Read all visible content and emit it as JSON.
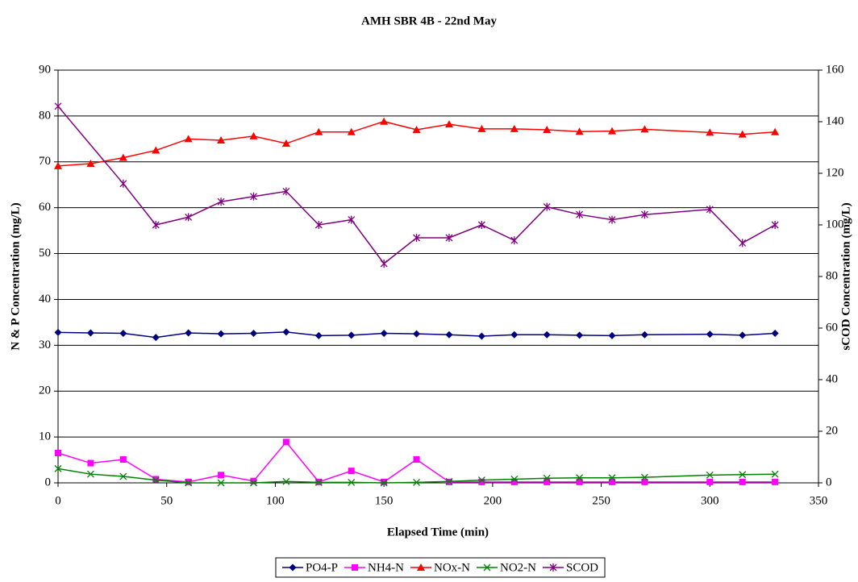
{
  "chart_data": {
    "type": "line",
    "title": "AMH SBR 4B - 22nd May",
    "x_label": "Elapsed Time (min)",
    "y_label": "N & P Concentration (mg/L)",
    "y2_label": "sCOD Concentration (mg/L)",
    "x": [
      0,
      15,
      30,
      45,
      60,
      75,
      90,
      105,
      120,
      135,
      150,
      165,
      180,
      195,
      210,
      225,
      240,
      255,
      270,
      300,
      315,
      330
    ],
    "series": [
      {
        "name": "PO4-P",
        "color": "#000080",
        "marker": "diamond",
        "values": [
          32.8,
          32.7,
          32.6,
          31.7,
          32.7,
          32.5,
          32.6,
          32.9,
          32.1,
          32.2,
          32.6,
          32.5,
          32.3,
          32.0,
          32.3,
          32.3,
          32.2,
          32.1,
          32.3,
          32.4,
          32.2,
          32.6
        ]
      },
      {
        "name": "NH4-N",
        "color": "#ff00ff",
        "marker": "square",
        "values": [
          6.5,
          4.3,
          5.1,
          0.8,
          0.2,
          1.7,
          0.4,
          8.9,
          0.2,
          2.6,
          0.2,
          5.1,
          0.2,
          0.2,
          0.2,
          0.2,
          0.2,
          0.2,
          0.2,
          0.2,
          0.2,
          0.2
        ]
      },
      {
        "name": "NOx-N",
        "color": "#ff0000",
        "marker": "triangle",
        "values": [
          69.1,
          69.6,
          70.9,
          72.5,
          75.0,
          74.7,
          75.6,
          74.0,
          76.5,
          76.5,
          78.8,
          77.0,
          78.2,
          77.2,
          77.2,
          77.0,
          76.6,
          76.7,
          77.1,
          76.4,
          76.0,
          76.5
        ]
      },
      {
        "name": "NO2-N",
        "color": "#008000",
        "marker": "x",
        "values": [
          3.1,
          1.9,
          1.4,
          0.6,
          0,
          0,
          0,
          0.3,
          0.1,
          0.1,
          0,
          0.1,
          0.3,
          0.6,
          0.8,
          1.0,
          1.1,
          1.1,
          1.2,
          1.7,
          1.8,
          1.9
        ]
      },
      {
        "name": "SCOD",
        "color": "#800080",
        "marker": "asterisk",
        "axis": "y2",
        "x": [
          0,
          30,
          45,
          60,
          75,
          90,
          105,
          120,
          135,
          150,
          165,
          180,
          195,
          210,
          225,
          240,
          255,
          270,
          300,
          315,
          330
        ],
        "values": [
          146,
          116,
          100,
          103,
          109,
          111,
          113,
          100,
          102,
          85,
          95,
          95,
          100,
          94,
          107,
          104,
          102,
          104,
          106,
          93,
          100
        ]
      }
    ],
    "xlim": [
      0,
      350
    ],
    "xticks": [
      0,
      50,
      100,
      150,
      200,
      250,
      300,
      350
    ],
    "ylim": [
      0,
      90
    ],
    "yticks": [
      0,
      10,
      20,
      30,
      40,
      50,
      60,
      70,
      80,
      90
    ],
    "y2lim": [
      0,
      160
    ],
    "y2ticks": [
      0,
      20,
      40,
      60,
      80,
      100,
      120,
      140,
      160
    ],
    "grid": true,
    "legend": "bottom"
  }
}
